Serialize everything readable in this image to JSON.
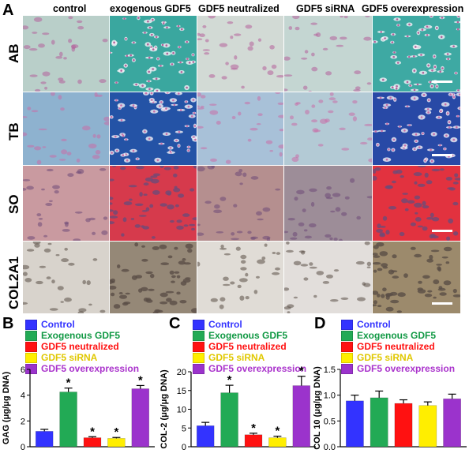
{
  "figure": {
    "panel_letters": [
      "A",
      "B",
      "C",
      "D"
    ],
    "column_headers": [
      "control",
      "exogenous GDF5",
      "GDF5 neutralized",
      "GDF5 siRNA",
      "GDF5 overexpression"
    ],
    "row_labels": [
      "AB",
      "TB",
      "SO",
      "COL2A1"
    ]
  },
  "stain_colors": {
    "AB": [
      "#b9cfc9",
      "#3aa79f",
      "#d2dad5",
      "#c4d6d2",
      "#3ea9a3"
    ],
    "TB": [
      "#8eb2cf",
      "#2453a6",
      "#a8c1d8",
      "#b3cad5",
      "#2849a6"
    ],
    "SO": [
      "#c99aa0",
      "#d63a4c",
      "#b58f8f",
      "#9d8d98",
      "#e2323f"
    ],
    "COL2A1": [
      "#d8d3cc",
      "#958877",
      "#e0dcd6",
      "#e2dedb",
      "#9c8a6c"
    ]
  },
  "cell_colors": {
    "AB": "#b4609a",
    "TB": "#c86ea8",
    "SO": "#6d4b78",
    "COL2A1": "#5a4e46"
  },
  "legend_labels": [
    "Control",
    "Exogenous GDF5",
    "GDF5 neutralized",
    "GDF5 siRNA",
    "GDF5 overexpression"
  ],
  "series_colors": [
    "#3333ff",
    "#22aa55",
    "#ff1111",
    "#ffee00",
    "#9b33cc"
  ],
  "legend_text_colors": [
    "#3333ff",
    "#119944",
    "#ff1111",
    "#e0c800",
    "#aa33cc"
  ],
  "chart_data": [
    {
      "type": "bar",
      "panel": "B",
      "categories": [
        "Control",
        "Exogenous GDF5",
        "GDF5 neutralized",
        "GDF5 siRNA",
        "GDF5 overexpression"
      ],
      "values": [
        1.2,
        4.25,
        0.7,
        0.65,
        4.5
      ],
      "errors": [
        0.15,
        0.3,
        0.08,
        0.07,
        0.25
      ],
      "significance": [
        "",
        "*",
        "*",
        "*",
        "*"
      ],
      "ylabel": "GAG (μg/μg DNA)",
      "ylim": [
        0,
        6
      ],
      "yticks": [
        "0",
        "2",
        "4",
        "6"
      ]
    },
    {
      "type": "bar",
      "panel": "C",
      "categories": [
        "Control",
        "Exogenous GDF5",
        "GDF5 neutralized",
        "GDF5 siRNA",
        "GDF5 overexpression"
      ],
      "values": [
        5.6,
        14.4,
        3.2,
        2.4,
        16.3
      ],
      "errors": [
        0.9,
        2.0,
        0.4,
        0.4,
        2.5
      ],
      "significance": [
        "",
        "*",
        "*",
        "*",
        "*"
      ],
      "ylabel": "COL-2 (μg/μg DNA)",
      "ylim": [
        0,
        20
      ],
      "yticks": [
        "0",
        "5",
        "10",
        "15",
        "20"
      ]
    },
    {
      "type": "bar",
      "panel": "D",
      "categories": [
        "Control",
        "Exogenous GDF5",
        "GDF5 neutralized",
        "GDF5 siRNA",
        "GDF5 overexpression"
      ],
      "values": [
        0.89,
        0.95,
        0.84,
        0.8,
        0.93
      ],
      "errors": [
        0.11,
        0.13,
        0.07,
        0.07,
        0.09
      ],
      "significance": [
        "",
        "",
        "",
        "",
        ""
      ],
      "ylabel": "COL 10 (μg/μg DNA)",
      "ylim": [
        0,
        1.5
      ],
      "yticks": [
        "0.0",
        "0.5",
        "1.0",
        "1.5"
      ]
    }
  ]
}
